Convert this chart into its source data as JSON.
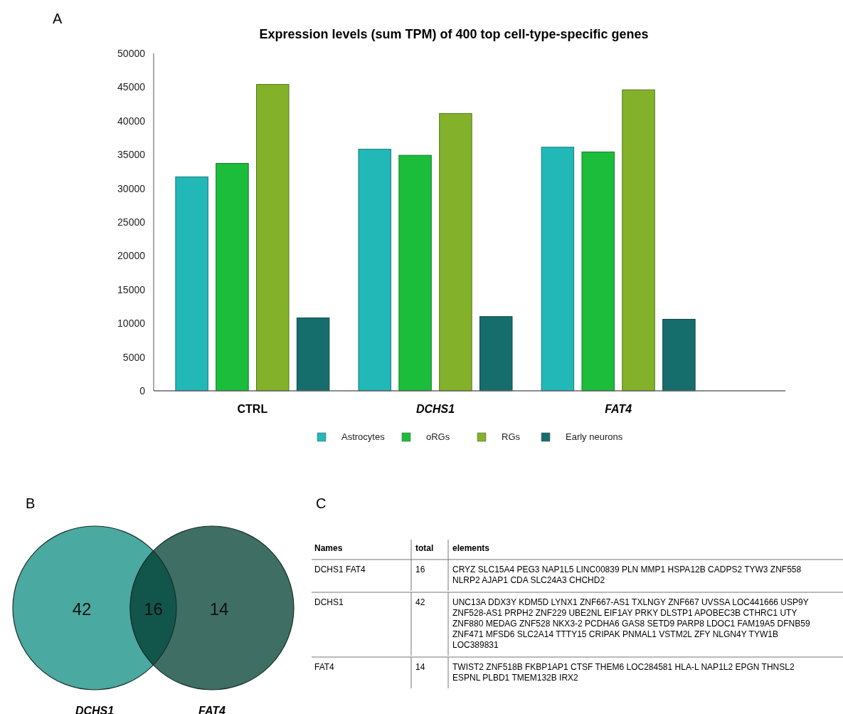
{
  "chart_data": [
    {
      "type": "bar",
      "title": "Expression levels (sum TPM) of 400 top cell-type-specific genes",
      "annotations": [
        "A"
      ],
      "categories": [
        "CTRL",
        "DCHS1",
        "FAT4"
      ],
      "series": [
        {
          "name": "Astrocytes",
          "color": "#22b8b8",
          "values": [
            31700,
            35800,
            36100
          ]
        },
        {
          "name": "oRGs",
          "color": "#1bbd3a",
          "values": [
            33700,
            34900,
            35400
          ]
        },
        {
          "name": "RGs",
          "color": "#83b22a",
          "values": [
            45400,
            41100,
            44600
          ]
        },
        {
          "name": "Early neurons",
          "color": "#166e6c",
          "values": [
            10800,
            11000,
            10600
          ]
        }
      ],
      "ylim": [
        0,
        50000
      ],
      "yticks": [
        0,
        5000,
        10000,
        15000,
        20000,
        25000,
        30000,
        35000,
        40000,
        45000,
        50000
      ],
      "grid": false,
      "legend": "bottom"
    },
    {
      "type": "other",
      "annotations": [
        "B"
      ],
      "categories": [
        "DCHS1",
        null,
        "FAT4"
      ],
      "values": [
        42,
        16,
        14
      ],
      "colors": [
        "#4aa9a0",
        "#12554a",
        "#3e6e64"
      ],
      "data_labels": true
    },
    {
      "type": "other",
      "annotations": [
        "C",
        "Names",
        "total",
        "elements",
        "DCHS1 FAT4",
        "16",
        "CRYZ SLC15A4 PEG3 NAP1L5 LINC00839 PLN MMP1 HSPA12B CADPS2 TYW3 ZNF558 NLRP2 AJAP1 CDA SLC24A3 CHCHD2",
        "DCHS1",
        "42",
        "UNC13A DDX3Y KDM5D LYNX1 ZNF667-AS1 TXLNGY ZNF667 UVSSA LOC441666 USP9Y ZNF528-AS1 PRPH2 ZNF229 UBE2NL EIF1AY PRKY DLSTP1 APOBEC3B CTHRC1 UTY ZNF880 MEDAG ZNF528 NKX3-2 PCDHA6 GAS8 SETD9 PARP8 LDOC1 FAM19A5 DFNB59 ZNF471 MFSD6 SLC2A14 TTTY15 CRIPAK PNMAL1 VSTM2L ZFY NLGN4Y TYW1B LOC389831",
        "FAT4",
        "14",
        "TWIST2 ZNF518B FKBP1AP1 CTSF THEM6 LOC284581 HLA-L NAP1L2 EPGN THNSL2 ESPNL PLBD1 TMEM132B IRX2"
      ]
    }
  ]
}
